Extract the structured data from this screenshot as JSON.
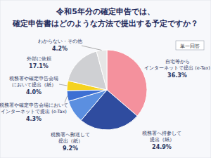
{
  "chart_data": {
    "type": "pie",
    "title": "令和5年分の確定申告では、\n確定申告書はどのような方法で提出する予定ですか？",
    "annotation": "単一回答",
    "categories": [
      "自宅等から\nインターネットで提出 (e-Tax)",
      "税務署へ持参して\n提出（紙）",
      "税務署へ郵送して\n提出（紙）",
      "税務署や確定申告会場において\nインターネットで提出 (e-Tax)",
      "税務署や確定申告会場\nにおいて提出（紙）",
      "外部に依頼",
      "わからない・その他"
    ],
    "values": [
      36.3,
      24.9,
      9.2,
      4.3,
      4.0,
      17.1,
      4.2
    ],
    "value_labels": [
      "36.3%",
      "24.9%",
      "9.2%",
      "4.3%",
      "4.0%",
      "17.1%",
      "4.2%"
    ],
    "colors": [
      "#f4919d",
      "#2f4c9f",
      "#5b8fe0",
      "#3d6fd3",
      "#f5d21f",
      "#cfd0d3",
      "#e6e6e6"
    ],
    "data_labels": true
  }
}
